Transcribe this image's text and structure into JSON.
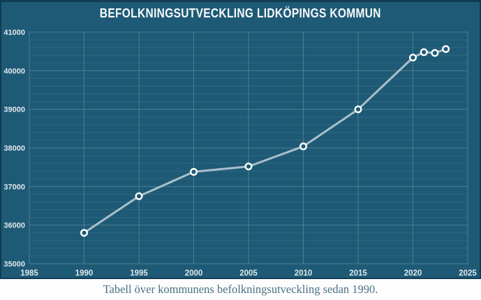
{
  "title": "BEFOLKNINGSUTVECKLING LIDKÖPINGS KOMMUN",
  "caption": "Tabell över kommunens befolkningsutveckling sedan 1990.",
  "colors": {
    "panel_bg": "#1e5a75",
    "panel_border": "#123c53",
    "grid_major": "#4d7e95",
    "grid_minor": "#2e6880",
    "tick_text": "#dde7ec",
    "title_text": "#f7fafb",
    "line": "#b6c8d2",
    "marker_stroke": "#ffffff",
    "caption_text": "#4a7186",
    "page_bg": "#fdfdfd"
  },
  "chart_data": {
    "type": "line",
    "title": "BEFOLKNINGSUTVECKLING LIDKÖPINGS KOMMUN",
    "xlabel": "",
    "ylabel": "",
    "xlim": [
      1985,
      2025
    ],
    "ylim": [
      35000,
      41000
    ],
    "x_ticks": [
      1985,
      1990,
      1995,
      2000,
      2005,
      2010,
      2015,
      2020,
      2025
    ],
    "y_ticks": [
      35000,
      36000,
      37000,
      38000,
      39000,
      40000,
      41000
    ],
    "y_minor_interval": 200,
    "grid": true,
    "legend": false,
    "marker": "open-circle",
    "x": [
      1990,
      1995,
      2000,
      2005,
      2010,
      2015,
      2020,
      2021,
      2022,
      2023
    ],
    "values": [
      35800,
      36750,
      37380,
      37520,
      38040,
      39000,
      40340,
      40480,
      40460,
      40560
    ]
  }
}
